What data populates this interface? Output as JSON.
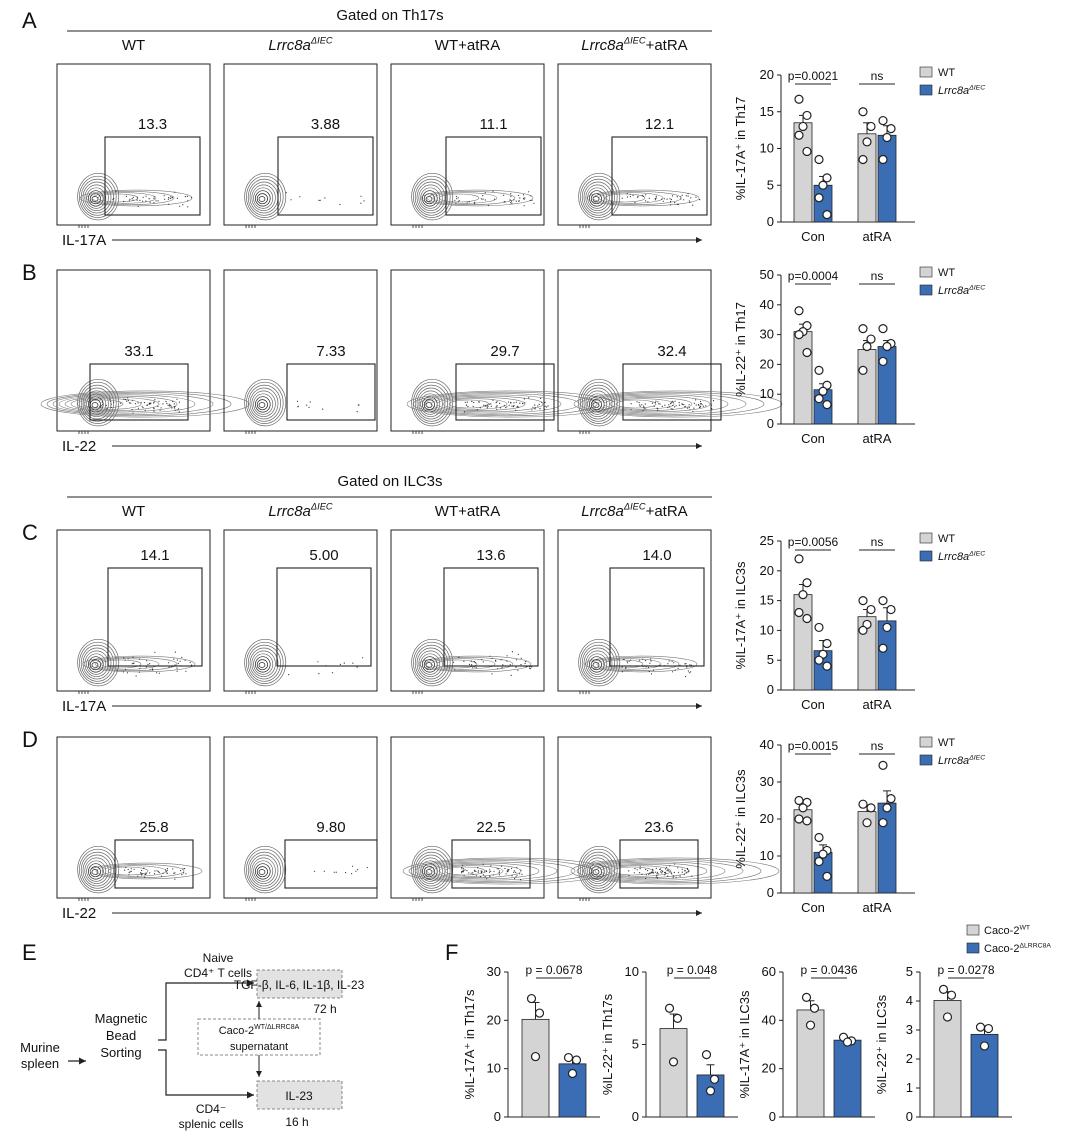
{
  "panels": {
    "A": {
      "letter": "A",
      "gate_label": "Gated on Th17s",
      "columns": [
        {
          "main": "WT",
          "italic": "",
          "sup": "",
          "tail": ""
        },
        {
          "main": "",
          "italic": "Lrrc8a",
          "sup": "ΔIEC",
          "tail": ""
        },
        {
          "main": "WT+atRA",
          "italic": "",
          "sup": "",
          "tail": ""
        },
        {
          "main": "",
          "italic": "Lrrc8a",
          "sup": "ΔIEC",
          "tail": "+atRA"
        }
      ],
      "gate_values": [
        "13.3",
        "3.88",
        "11.1",
        "12.1"
      ],
      "flow_axis_label": "IL-17A"
    },
    "B": {
      "letter": "B",
      "gate_values": [
        "33.1",
        "7.33",
        "29.7",
        "32.4"
      ],
      "flow_axis_label": "IL-22"
    },
    "C": {
      "letter": "C",
      "gate_label": "Gated on ILC3s",
      "columns": [
        {
          "main": "WT",
          "italic": "",
          "sup": "",
          "tail": ""
        },
        {
          "main": "",
          "italic": "Lrrc8a",
          "sup": "ΔIEC",
          "tail": ""
        },
        {
          "main": "WT+atRA",
          "italic": "",
          "sup": "",
          "tail": ""
        },
        {
          "main": "",
          "italic": "Lrrc8a",
          "sup": "ΔIEC",
          "tail": "+atRA"
        }
      ],
      "gate_values": [
        "14.1",
        "5.00",
        "13.6",
        "14.0"
      ],
      "flow_axis_label": "IL-17A"
    },
    "D": {
      "letter": "D",
      "gate_values": [
        "25.8",
        "9.80",
        "22.5",
        "23.6"
      ],
      "flow_axis_label": "IL-22"
    },
    "E": {
      "letter": "E",
      "diagram": {
        "source": [
          "Murine",
          "spleen"
        ],
        "sorting": [
          "Magnetic",
          "Bead",
          "Sorting"
        ],
        "naive": [
          "Naive",
          "CD4⁺ T cells"
        ],
        "cytokines": "TGF-β, IL-6, IL-1β, IL-23",
        "time_long": "72 h",
        "supernatant_main": "Caco-2",
        "supernatant_sup": "WT/ΔLRRC8A",
        "supernatant_tail": "supernatant",
        "il23": "IL-23",
        "cd4neg": [
          "CD4⁻",
          "splenic cells"
        ],
        "time_short": "16 h"
      }
    },
    "F": {
      "letter": "F"
    }
  },
  "legend_bar": {
    "wt": "WT",
    "ko_italic": "Lrrc8a",
    "ko_sup": "ΔIEC"
  },
  "legend_f": {
    "wt_main": "Caco-2",
    "wt_sup": "WT",
    "ko_main": "Caco-2",
    "ko_sup": "ΔLRRC8A"
  },
  "colors": {
    "wt": "#d4d4d4",
    "ko": "#3a6db3",
    "edge": "#222222"
  },
  "chart_data": [
    {
      "type": "bar",
      "panel": "A",
      "categories": [
        "Con",
        "atRA"
      ],
      "ylabel": "%IL-17A⁺ in Th17",
      "ylim": [
        0,
        20
      ],
      "yticks": [
        0,
        5,
        10,
        15,
        20
      ],
      "series": [
        {
          "name": "WT",
          "means": [
            13.5,
            12.0
          ],
          "sem": [
            1.0,
            1.5
          ],
          "points": [
            [
              16.7,
              14.5,
              13.0,
              11.8,
              9.6
            ],
            [
              15.0,
              13.0,
              10.9,
              8.5
            ]
          ]
        },
        {
          "name": "Lrrc8aΔIEC",
          "means": [
            5.0,
            11.8
          ],
          "sem": [
            1.2,
            1.3
          ],
          "points": [
            [
              8.5,
              6.0,
              5.0,
              3.3,
              1.0
            ],
            [
              13.8,
              12.7,
              11.5,
              8.5
            ]
          ]
        }
      ],
      "comparisons": [
        "p=0.0021",
        "ns"
      ]
    },
    {
      "type": "bar",
      "panel": "B",
      "categories": [
        "Con",
        "atRA"
      ],
      "ylabel": "%IL-22⁺ in Th17",
      "ylim": [
        0,
        50
      ],
      "yticks": [
        0,
        10,
        20,
        30,
        40,
        50
      ],
      "series": [
        {
          "name": "WT",
          "means": [
            31.0,
            25.0
          ],
          "sem": [
            2.5,
            3.0
          ],
          "points": [
            [
              38.0,
              33.0,
              31.0,
              30.0,
              24.0
            ],
            [
              32.0,
              28.5,
              26.0,
              18.0
            ]
          ]
        },
        {
          "name": "Lrrc8aΔIEC",
          "means": [
            11.5,
            26.0
          ],
          "sem": [
            2.0,
            2.0
          ],
          "points": [
            [
              18.0,
              13.0,
              11.0,
              8.5,
              6.5
            ],
            [
              32.0,
              27.0,
              26.0,
              21.0
            ]
          ]
        }
      ],
      "comparisons": [
        "p=0.0004",
        "ns"
      ]
    },
    {
      "type": "bar",
      "panel": "C",
      "categories": [
        "Con",
        "atRA"
      ],
      "ylabel": "%IL-17A⁺ in ILC3s",
      "ylim": [
        0,
        25
      ],
      "yticks": [
        0,
        5,
        10,
        15,
        20,
        25
      ],
      "series": [
        {
          "name": "WT",
          "means": [
            16.0,
            12.3
          ],
          "sem": [
            1.7,
            1.2
          ],
          "points": [
            [
              22.0,
              18.0,
              16.0,
              13.0,
              12.0
            ],
            [
              15.0,
              13.5,
              11.0,
              10.0
            ]
          ]
        },
        {
          "name": "Lrrc8aΔIEC",
          "means": [
            6.6,
            11.6
          ],
          "sem": [
            1.7,
            2.2
          ],
          "points": [
            [
              10.5,
              7.8,
              6.0,
              5.0,
              4.0
            ],
            [
              15.0,
              13.5,
              10.5,
              7.0
            ]
          ]
        }
      ],
      "comparisons": [
        "p=0.0056",
        "ns"
      ]
    },
    {
      "type": "bar",
      "panel": "D",
      "categories": [
        "Con",
        "atRA"
      ],
      "ylabel": "%IL-22⁺ in ILC3s",
      "ylim": [
        0,
        40
      ],
      "yticks": [
        0,
        10,
        20,
        30,
        40
      ],
      "series": [
        {
          "name": "WT",
          "means": [
            22.5,
            22.0
          ],
          "sem": [
            1.5,
            1.5
          ],
          "points": [
            [
              25.0,
              24.5,
              23.0,
              20.0,
              19.5
            ],
            [
              24.0,
              23.0,
              19.0
            ]
          ]
        },
        {
          "name": "Lrrc8aΔIEC",
          "means": [
            11.0,
            24.3
          ],
          "sem": [
            2.0,
            3.3
          ],
          "points": [
            [
              15.0,
              11.5,
              10.5,
              8.5,
              4.5
            ],
            [
              34.5,
              25.5,
              23.0,
              19.0
            ]
          ]
        }
      ],
      "comparisons": [
        "p=0.0015",
        "ns"
      ]
    },
    {
      "type": "bar",
      "panel": "F1",
      "ylabel": "%IL-17A⁺ in Th17s",
      "ylim": [
        0,
        30
      ],
      "yticks": [
        0,
        10,
        20,
        30
      ],
      "series": [
        {
          "name": "Caco-2WT",
          "mean": 20.2,
          "sem": 3.5,
          "points": [
            24.5,
            21.5,
            12.5
          ]
        },
        {
          "name": "Caco-2ΔLRRC8A",
          "mean": 11.0,
          "sem": 1.3,
          "points": [
            12.3,
            11.8,
            9.0
          ]
        }
      ],
      "comparison": "p = 0.0678"
    },
    {
      "type": "bar",
      "panel": "F2",
      "ylabel": "%IL-22⁺ in Th17s",
      "ylim": [
        0,
        10
      ],
      "yticks": [
        0,
        5,
        10
      ],
      "series": [
        {
          "name": "Caco-2WT",
          "mean": 6.1,
          "sem": 1.0,
          "points": [
            7.5,
            6.8,
            3.8
          ]
        },
        {
          "name": "Caco-2ΔLRRC8A",
          "mean": 2.9,
          "sem": 0.7,
          "points": [
            4.3,
            2.6,
            1.8
          ]
        }
      ],
      "comparison": "p = 0.048"
    },
    {
      "type": "bar",
      "panel": "F3",
      "ylabel": "%IL-17A⁺ in ILC3s",
      "ylim": [
        0,
        60
      ],
      "yticks": [
        0,
        20,
        40,
        60
      ],
      "series": [
        {
          "name": "Caco-2WT",
          "mean": 44.3,
          "sem": 3.8,
          "points": [
            49.5,
            45.0,
            38.0
          ]
        },
        {
          "name": "Caco-2ΔLRRC8A",
          "mean": 31.8,
          "sem": 1.0,
          "points": [
            33.0,
            31.5,
            31.0
          ]
        }
      ],
      "comparison": "p = 0.0436"
    },
    {
      "type": "bar",
      "panel": "F4",
      "ylabel": "%IL-22⁺ in ILC3s",
      "ylim": [
        0,
        5
      ],
      "yticks": [
        0,
        1,
        2,
        3,
        4,
        5
      ],
      "series": [
        {
          "name": "Caco-2WT",
          "mean": 4.02,
          "sem": 0.3,
          "points": [
            4.4,
            4.2,
            3.45
          ]
        },
        {
          "name": "Caco-2ΔLRRC8A",
          "mean": 2.85,
          "sem": 0.2,
          "points": [
            3.1,
            3.05,
            2.45
          ]
        }
      ],
      "comparison": "p = 0.0278"
    }
  ]
}
